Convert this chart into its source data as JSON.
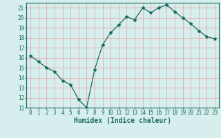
{
  "xlabel": "Humidex (Indice chaleur)",
  "ylabel": "",
  "x": [
    0,
    1,
    2,
    3,
    4,
    5,
    6,
    7,
    8,
    9,
    10,
    11,
    12,
    13,
    14,
    15,
    16,
    17,
    18,
    19,
    20,
    21,
    22,
    23
  ],
  "y": [
    16.2,
    15.6,
    15.0,
    14.6,
    13.7,
    13.3,
    11.8,
    11.0,
    14.8,
    17.3,
    18.5,
    19.3,
    20.1,
    19.8,
    21.0,
    20.5,
    21.0,
    21.3,
    20.6,
    20.0,
    19.4,
    18.7,
    18.1,
    17.9
  ],
  "line_color": "#1a6b5a",
  "marker": "*",
  "marker_size": 3,
  "bg_color": "#d6eeee",
  "grid_color": "#e8a8a8",
  "tick_label_fontsize": 5.5,
  "xlabel_fontsize": 7,
  "ylim": [
    11,
    21.5
  ],
  "yticks": [
    11,
    12,
    13,
    14,
    15,
    16,
    17,
    18,
    19,
    20,
    21
  ],
  "xticks": [
    0,
    1,
    2,
    3,
    4,
    5,
    6,
    7,
    8,
    9,
    10,
    11,
    12,
    13,
    14,
    15,
    16,
    17,
    18,
    19,
    20,
    21,
    22,
    23
  ]
}
